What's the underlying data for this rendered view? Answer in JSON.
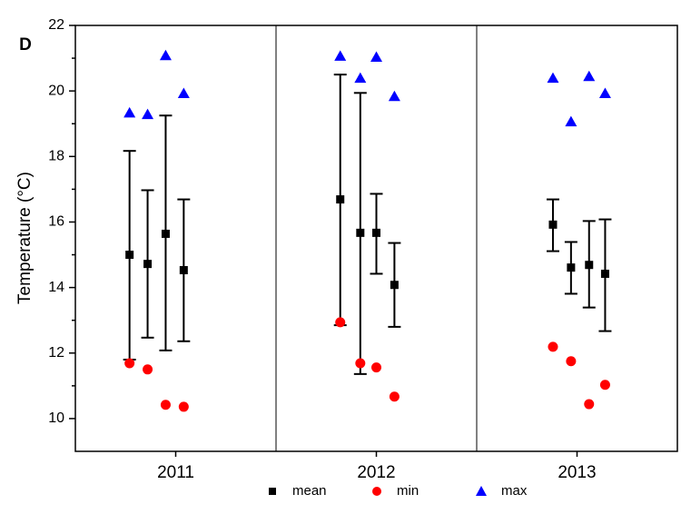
{
  "chart_data": {
    "type": "scatter",
    "panel_label": "D",
    "ylabel": "Temperature (°C)",
    "x": [
      0.77,
      0.86,
      0.95,
      1.04,
      1.82,
      1.92,
      2.0,
      2.09,
      2.88,
      2.97,
      3.06,
      3.14
    ],
    "xlim": [
      0.5,
      3.5
    ],
    "xticks": [
      {
        "value": 1,
        "label": "2011"
      },
      {
        "value": 2,
        "label": "2012"
      },
      {
        "value": 3,
        "label": "2013"
      }
    ],
    "ylim": [
      9,
      22
    ],
    "yticks": [
      10,
      12,
      14,
      16,
      18,
      20,
      22
    ],
    "series": [
      {
        "name": "mean",
        "color": "#000000",
        "marker": "square",
        "values": [
          15.0,
          14.72,
          15.64,
          14.53,
          16.69,
          15.67,
          15.67,
          14.08,
          15.92,
          14.61,
          14.69,
          14.42
        ],
        "lower": [
          11.8,
          12.47,
          12.08,
          12.36,
          12.85,
          11.36,
          14.42,
          12.8,
          15.11,
          13.81,
          13.39,
          12.67
        ],
        "upper": [
          18.17,
          16.97,
          19.25,
          16.69,
          20.5,
          19.94,
          16.86,
          15.36,
          16.69,
          15.39,
          16.03,
          16.08
        ]
      },
      {
        "name": "min",
        "color": "#ff0000",
        "marker": "circle",
        "values": [
          11.69,
          11.5,
          10.42,
          10.36,
          12.94,
          11.69,
          11.56,
          10.67,
          12.19,
          11.75,
          10.44,
          11.03
        ]
      },
      {
        "name": "max",
        "color": "#0000ff",
        "marker": "triangle",
        "values": [
          19.33,
          19.28,
          21.08,
          19.92,
          21.06,
          20.39,
          21.03,
          19.83,
          20.39,
          19.06,
          20.44,
          19.92
        ]
      }
    ]
  }
}
